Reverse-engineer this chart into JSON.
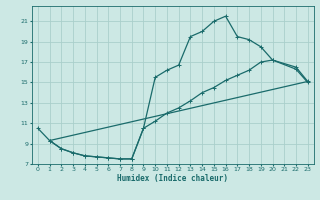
{
  "xlabel": "Humidex (Indice chaleur)",
  "xlim": [
    -0.5,
    23.5
  ],
  "ylim": [
    7,
    22.5
  ],
  "yticks": [
    7,
    9,
    11,
    13,
    15,
    17,
    19,
    21
  ],
  "xticks": [
    0,
    1,
    2,
    3,
    4,
    5,
    6,
    7,
    8,
    9,
    10,
    11,
    12,
    13,
    14,
    15,
    16,
    17,
    18,
    19,
    20,
    21,
    22,
    23
  ],
  "bg_color": "#cce8e4",
  "grid_color": "#aacfcb",
  "line_color": "#1a6b6b",
  "line1_x": [
    0,
    1,
    2,
    3,
    4,
    5,
    6,
    7,
    8,
    9,
    10,
    11,
    12,
    13,
    14,
    15,
    16,
    17,
    18,
    19,
    20,
    22,
    23
  ],
  "line1_y": [
    10.5,
    9.3,
    8.5,
    8.1,
    7.8,
    7.7,
    7.6,
    7.5,
    7.5,
    10.5,
    15.5,
    16.2,
    16.7,
    19.5,
    20.0,
    21.0,
    21.5,
    19.5,
    19.2,
    18.5,
    17.2,
    16.3,
    15.0
  ],
  "line2_x": [
    1,
    2,
    3,
    4,
    5,
    6,
    7,
    8,
    9,
    10,
    11,
    12,
    13,
    14,
    15,
    16,
    17,
    18,
    19,
    20,
    22,
    23
  ],
  "line2_y": [
    9.3,
    8.5,
    8.1,
    7.8,
    7.7,
    7.6,
    7.5,
    7.5,
    10.5,
    11.2,
    12.0,
    12.5,
    13.2,
    14.0,
    14.5,
    15.2,
    15.7,
    16.2,
    17.0,
    17.2,
    16.5,
    15.1
  ],
  "line3_x": [
    1,
    23
  ],
  "line3_y": [
    9.3,
    15.1
  ]
}
